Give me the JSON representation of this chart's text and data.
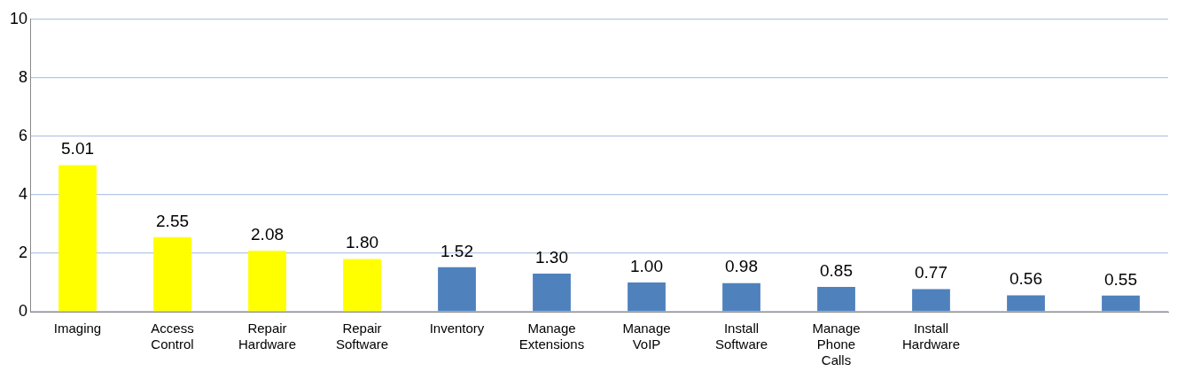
{
  "chart_data": {
    "type": "bar",
    "categories": [
      "Imaging",
      "Access Control",
      "Repair Hardware",
      "Repair Software",
      "Inventory",
      "Manage Extensions",
      "Manage VoIP",
      "Install Software",
      "Manage Phone Calls",
      "Install Hardware",
      null,
      null
    ],
    "values": [
      5.01,
      2.55,
      2.08,
      1.8,
      1.52,
      1.3,
      1.0,
      0.98,
      0.85,
      0.77,
      0.56,
      0.55
    ],
    "colors": [
      "#ffff00",
      "#ffff00",
      "#ffff00",
      "#ffff00",
      "#4f81bd",
      "#4f81bd",
      "#4f81bd",
      "#4f81bd",
      "#4f81bd",
      "#4f81bd",
      "#4f81bd",
      "#4f81bd"
    ],
    "value_labels": [
      "5.01",
      "2.55",
      "2.08",
      "1.80",
      "1.52",
      "1.30",
      "1.00",
      "0.98",
      "0.85",
      "0.77",
      "0.56",
      "0.55"
    ],
    "ylim": [
      0,
      10
    ],
    "yticks": [
      0,
      2,
      4,
      6,
      8,
      10
    ],
    "grid": "y",
    "legend": false
  }
}
